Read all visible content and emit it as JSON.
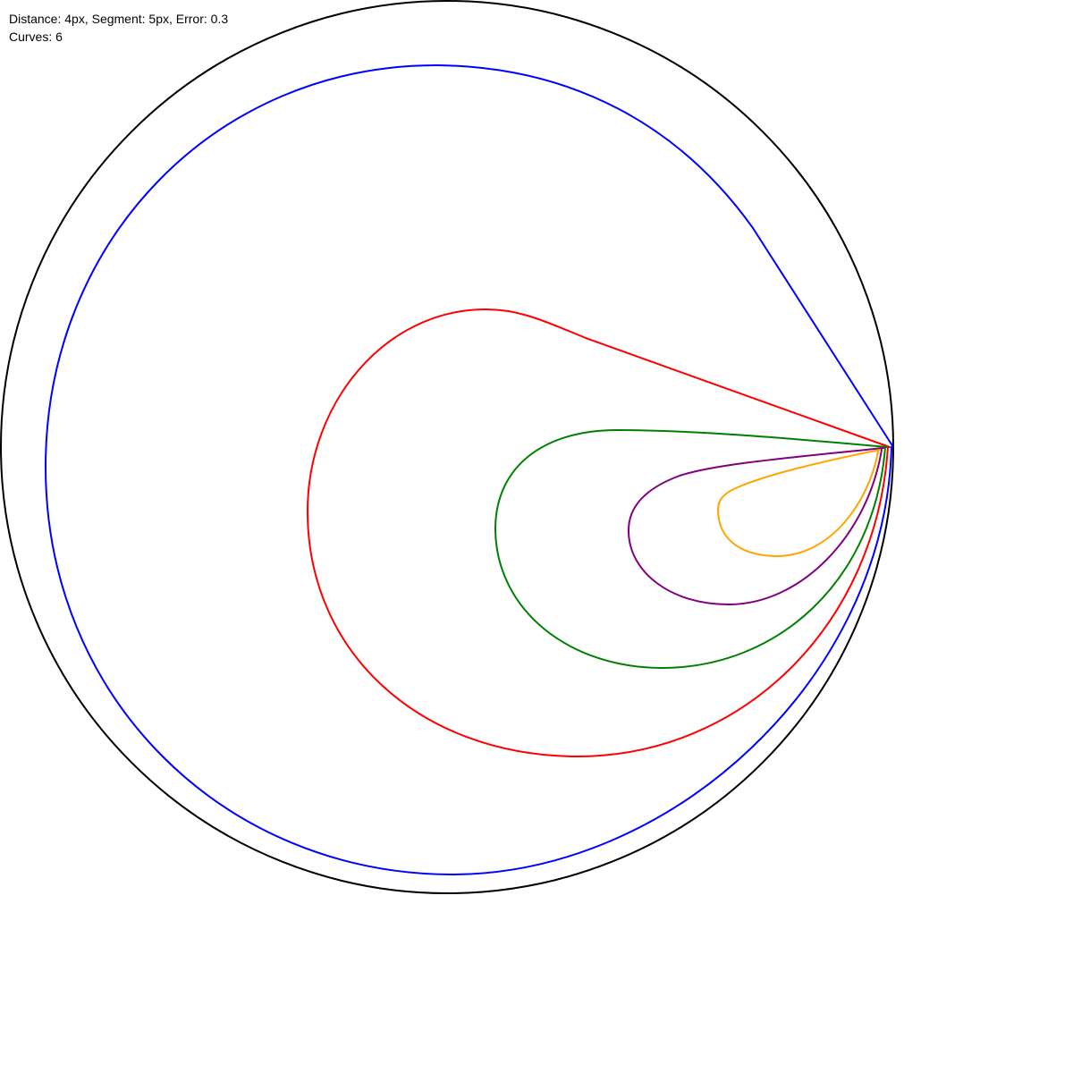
{
  "info": {
    "params_line": "Distance: 4px, Segment: 5px, Error: 0.3",
    "curves_line": "Curves: 6"
  },
  "curves": [
    {
      "name": "outer-circle",
      "color": "#000000"
    },
    {
      "name": "blue",
      "color": "#0000ff"
    },
    {
      "name": "red",
      "color": "#ff0000"
    },
    {
      "name": "green",
      "color": "#008000"
    },
    {
      "name": "purple",
      "color": "#800080"
    },
    {
      "name": "orange",
      "color": "#ffa500"
    }
  ]
}
